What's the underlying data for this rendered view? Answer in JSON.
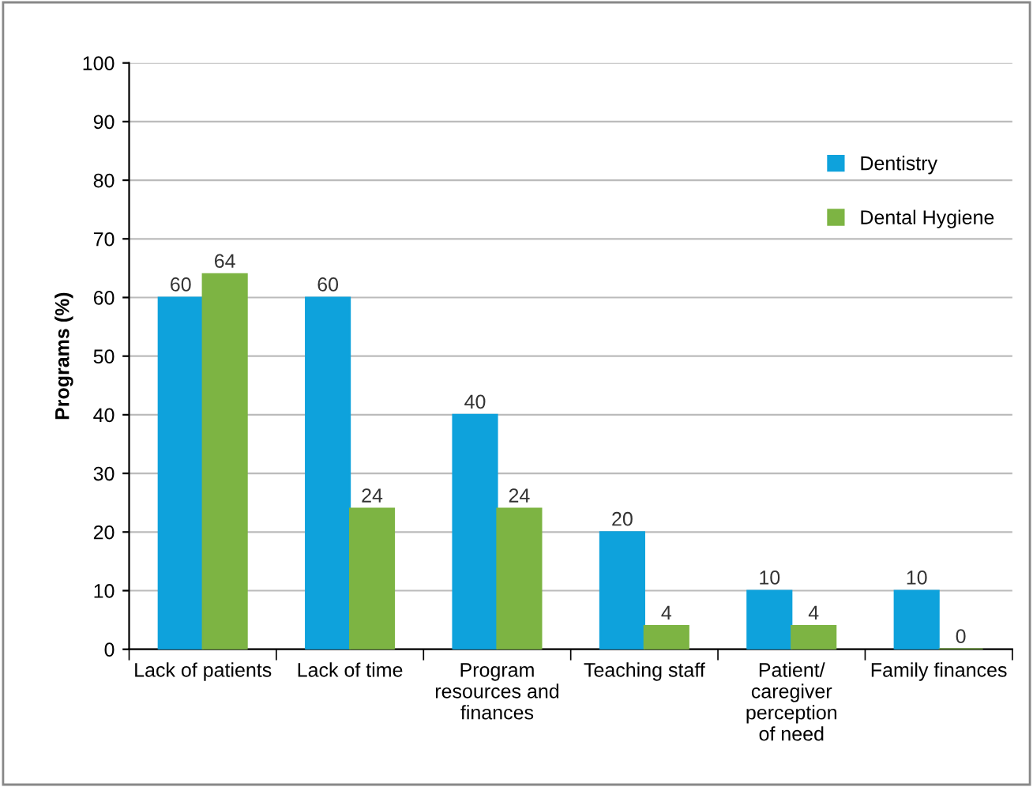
{
  "chart_data": {
    "type": "bar",
    "ylabel": "Programs (%)",
    "categories": [
      "Lack of patients",
      "Lack of time",
      "Program\nresources and\nfinances",
      "Teaching staff",
      "Patient/\ncaregiver\nperception\nof need",
      "Family finances"
    ],
    "series": [
      {
        "name": "Dentistry",
        "color": "#0ea2dc",
        "values": [
          60,
          60,
          40,
          20,
          10,
          10
        ]
      },
      {
        "name": "Dental Hygiene",
        "color": "#7db443",
        "values": [
          64,
          24,
          24,
          4,
          4,
          0
        ]
      }
    ],
    "ylim": [
      0,
      100
    ],
    "yticks": [
      0,
      10,
      20,
      30,
      40,
      50,
      60,
      70,
      80,
      90,
      100
    ],
    "grid": "y",
    "legend": "right",
    "data_labels": true
  }
}
